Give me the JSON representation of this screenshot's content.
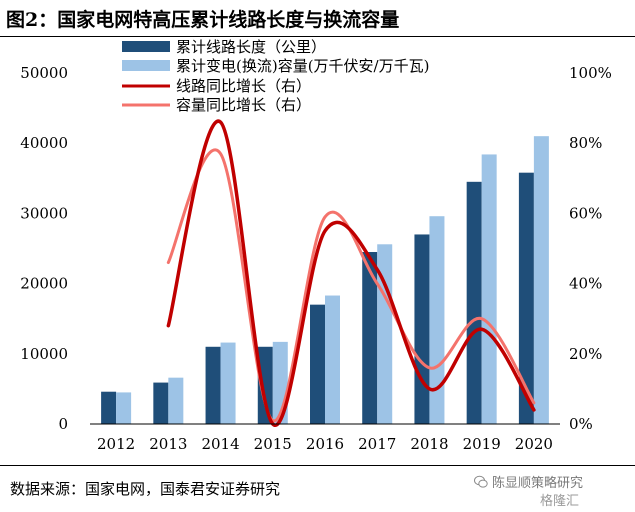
{
  "title": "图2：国家电网特高压累计线路长度与换流容量",
  "source": "数据来源：国家电网，国泰君安证券研究",
  "watermark": {
    "line1": "陈显顺策略研究",
    "line2": "格隆汇",
    "icon": "wechat-icon",
    "color": "#7a7a7a"
  },
  "colors": {
    "bar_length": "#1f4e79",
    "bar_capacity": "#9dc3e6",
    "line_length_growth": "#c00000",
    "line_capacity_growth": "#f4736c"
  },
  "chart_data": {
    "type": "bar",
    "categories": [
      "2012",
      "2013",
      "2014",
      "2015",
      "2016",
      "2017",
      "2018",
      "2019",
      "2020"
    ],
    "series": [
      {
        "name": "累计线路长度（公里）",
        "type": "bar",
        "axis": "left",
        "values": [
          4600,
          5900,
          11000,
          11000,
          17000,
          24500,
          27000,
          34500,
          35800
        ]
      },
      {
        "name": "累计变电(换流)容量(万千伏安/万千瓦)",
        "type": "bar",
        "axis": "left",
        "values": [
          4500,
          6600,
          11600,
          11700,
          18300,
          25600,
          29600,
          38400,
          41000
        ]
      },
      {
        "name": "线路同比增长（右）",
        "type": "line",
        "axis": "right",
        "values": [
          null,
          0.28,
          0.86,
          0.0,
          0.55,
          0.44,
          0.1,
          0.27,
          0.04
        ]
      },
      {
        "name": "容量同比增长（右）",
        "type": "line",
        "axis": "right",
        "values": [
          null,
          0.46,
          0.77,
          0.01,
          0.59,
          0.4,
          0.16,
          0.3,
          0.06
        ]
      }
    ],
    "y_left": {
      "min": 0,
      "max": 50000,
      "ticks": [
        "0",
        "10000",
        "20000",
        "30000",
        "40000",
        "50000"
      ]
    },
    "y_right": {
      "min": 0,
      "max": 1.0,
      "ticks": [
        "0%",
        "20%",
        "40%",
        "60%",
        "80%",
        "100%"
      ]
    },
    "grid": false,
    "legend_position": "top-left"
  }
}
